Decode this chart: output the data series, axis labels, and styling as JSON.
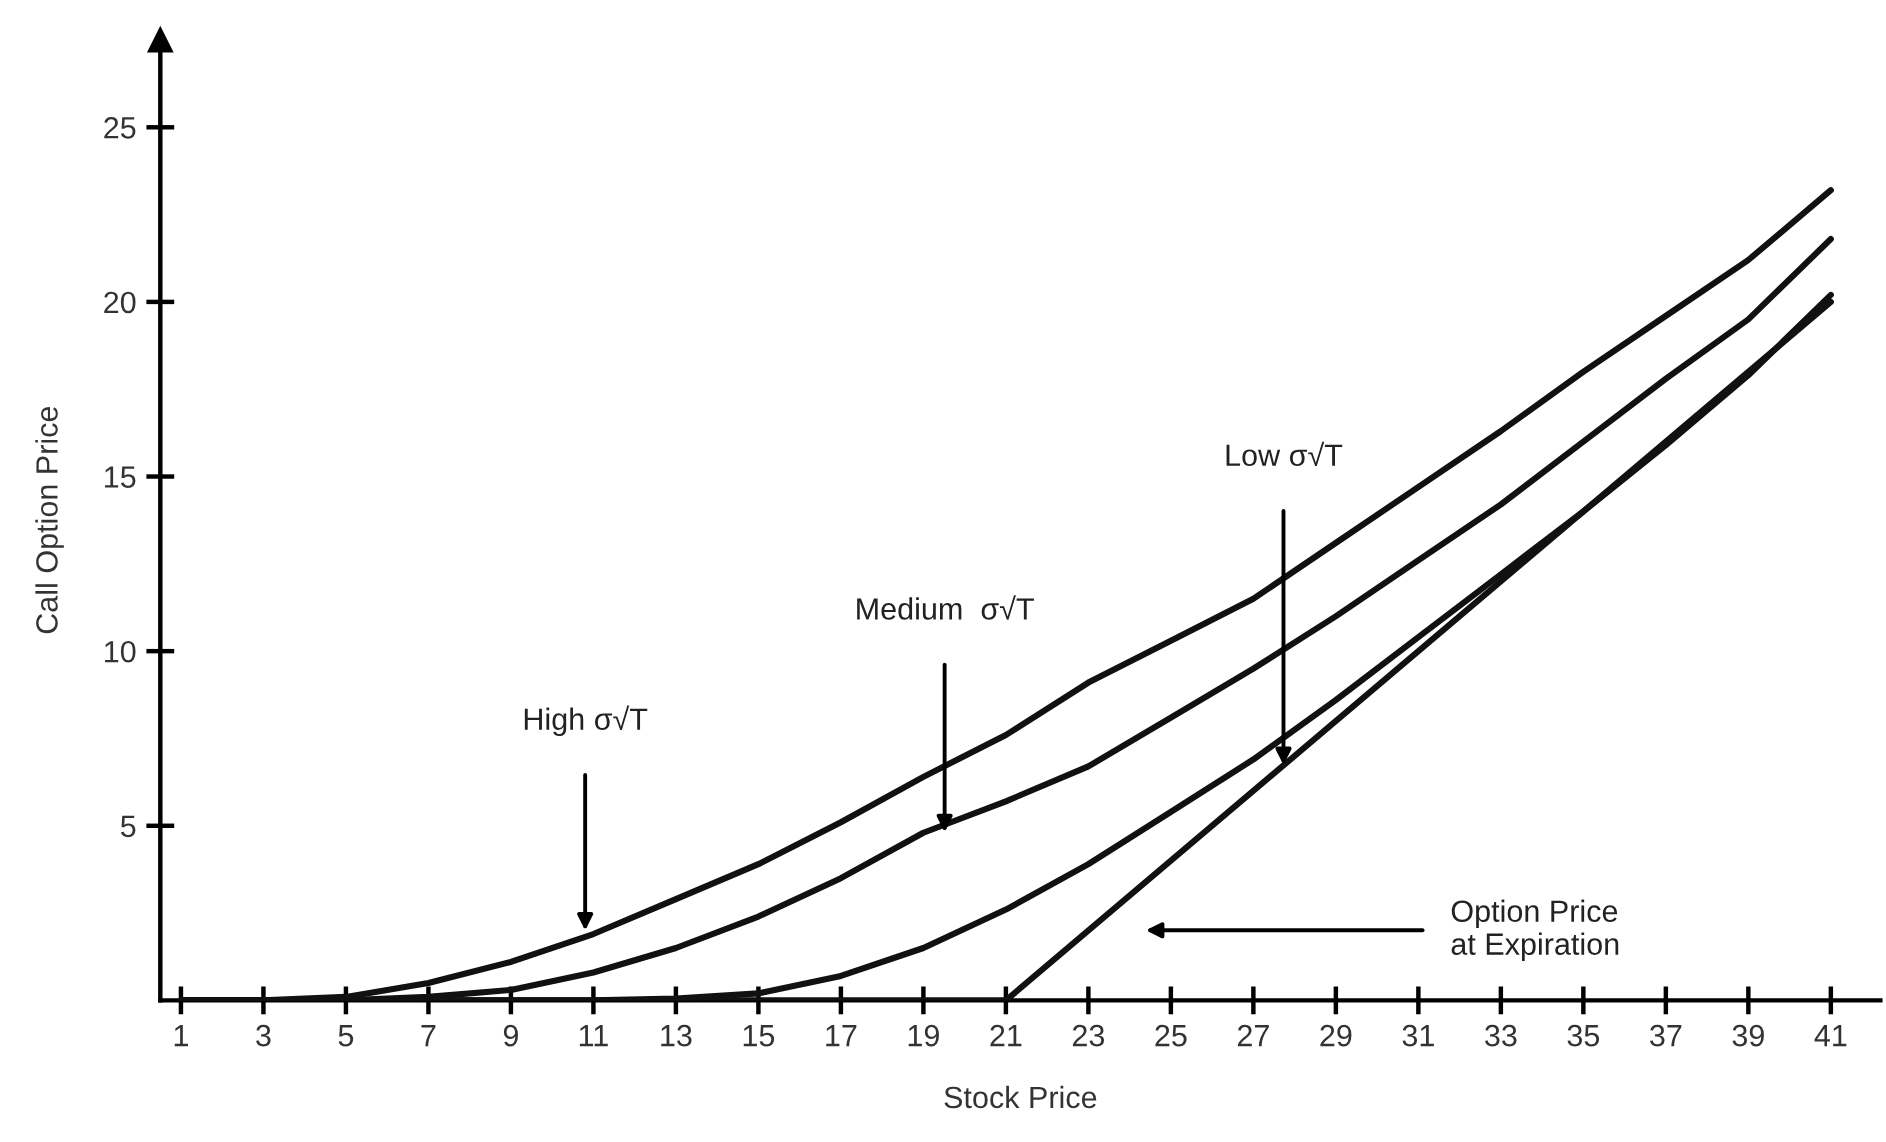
{
  "chart_data": {
    "type": "line",
    "xlabel": "Stock Price",
    "ylabel": "Call Option Price",
    "xlim": [
      0.5,
      42.2
    ],
    "ylim": [
      0,
      27.5
    ],
    "xticks": [
      1,
      3,
      5,
      7,
      9,
      11,
      13,
      15,
      17,
      19,
      21,
      23,
      25,
      27,
      29,
      31,
      33,
      35,
      37,
      39,
      41
    ],
    "yticks": [
      5,
      10,
      15,
      20,
      25
    ],
    "grid": false,
    "legend": false,
    "marker": "none",
    "line_style": "solid",
    "series": [
      {
        "color": "#111111",
        "x": [
          1,
          3,
          5,
          7,
          9,
          11,
          13,
          15,
          17,
          19,
          21,
          23,
          25,
          27,
          29,
          31,
          33,
          35,
          37,
          39,
          41
        ],
        "values": [
          0,
          0,
          0.1,
          0.5,
          1.1,
          1.9,
          2.9,
          3.9,
          5.1,
          6.4,
          7.6,
          9.1,
          10.3,
          11.5,
          13.1,
          14.7,
          16.3,
          18.0,
          19.6,
          21.2,
          23.2
        ]
      },
      {
        "color": "#111111",
        "x": [
          1,
          3,
          5,
          7,
          9,
          11,
          13,
          15,
          17,
          19,
          21,
          23,
          25,
          27,
          29,
          31,
          33,
          35,
          37,
          39,
          41
        ],
        "values": [
          0,
          0,
          0,
          0.1,
          0.3,
          0.8,
          1.5,
          2.4,
          3.5,
          4.8,
          5.7,
          6.7,
          8.1,
          9.5,
          11.0,
          12.6,
          14.2,
          16.0,
          17.8,
          19.5,
          21.8
        ]
      },
      {
        "color": "#111111",
        "x": [
          1,
          3,
          5,
          7,
          9,
          11,
          13,
          15,
          17,
          19,
          21,
          23,
          25,
          27,
          29,
          31,
          33,
          35,
          37,
          39,
          41
        ],
        "values": [
          0,
          0,
          0,
          0,
          0,
          0,
          0.05,
          0.2,
          0.7,
          1.5,
          2.6,
          3.9,
          5.4,
          6.9,
          8.6,
          10.4,
          12.2,
          14.0,
          15.9,
          17.9,
          20.2
        ]
      },
      {
        "color": "#111111",
        "x": [
          1,
          21,
          41
        ],
        "values": [
          0,
          0,
          20
        ]
      }
    ],
    "annotations": [
      {
        "text": "High σ√T",
        "x": 10.8,
        "y": 2.0
      },
      "Medium  σ√T",
      "Low σ√T",
      "Option Price\nat Expiration"
    ]
  }
}
